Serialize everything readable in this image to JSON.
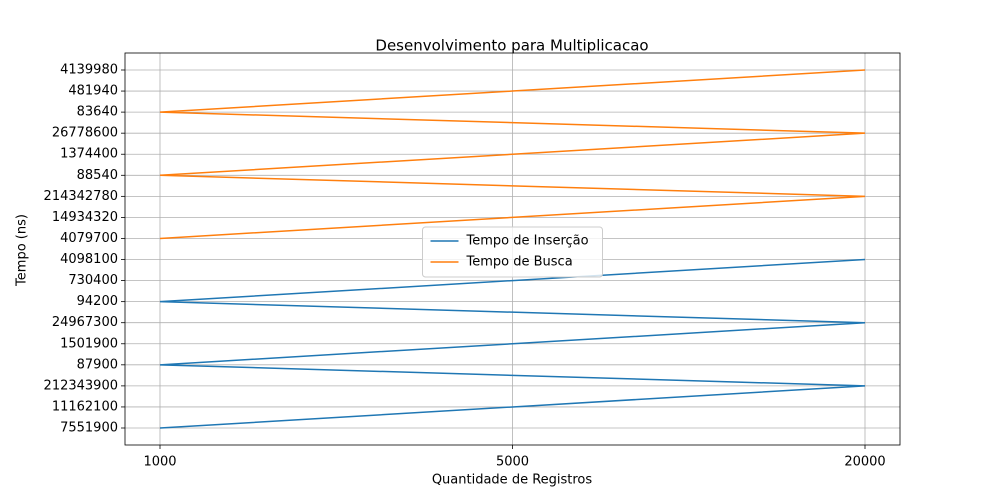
{
  "chart_data": {
    "type": "line",
    "title": "Desenvolvimento para Multiplicacao",
    "x_label": "Quantidade de Registros",
    "y_label": "Tempo (ns)",
    "categories": [
      "1000",
      "5000",
      "20000"
    ],
    "ycategories": [
      7551900,
      11162100,
      212343900,
      87900,
      1501900,
      24967300,
      94200,
      730400,
      4098100,
      4079700,
      14934320,
      214342780,
      88540,
      1374400,
      26778600,
      83640,
      481940,
      4139980
    ],
    "grid": true,
    "legend": "center",
    "series": [
      {
        "name": "Tempo de Inserção",
        "color": "#1f77b4",
        "x": [
          "1000",
          "5000",
          "20000",
          "1000",
          "5000",
          "20000",
          "1000",
          "5000",
          "20000"
        ],
        "values": [
          7551900,
          11162100,
          212343900,
          87900,
          1501900,
          24967300,
          94200,
          730400,
          4098100
        ]
      },
      {
        "name": "Tempo de Busca",
        "color": "#ff7f0e",
        "x": [
          "1000",
          "5000",
          "20000",
          "1000",
          "5000",
          "20000",
          "1000",
          "5000",
          "20000"
        ],
        "values": [
          4079700,
          14934320,
          214342780,
          88540,
          1374400,
          26778600,
          83640,
          481940,
          4139980
        ]
      }
    ]
  }
}
